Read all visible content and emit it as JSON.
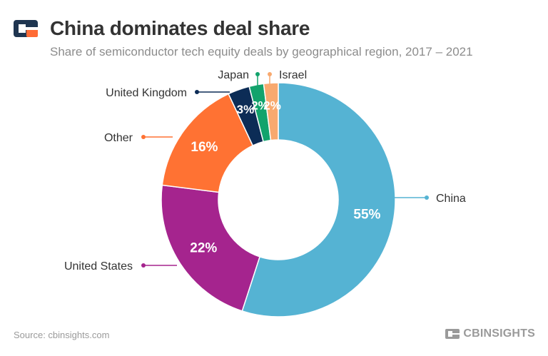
{
  "header": {
    "title": "China dominates deal share",
    "subtitle": "Share of semiconductor tech equity deals by geographical region, 2017 – 2021"
  },
  "footer": {
    "source": "Source: cbinsights.com",
    "brand": "CBINSIGHTS"
  },
  "colors": {
    "title": "#333333",
    "subtitle": "#8c8c8c",
    "logo_dark": "#1f3550",
    "logo_orange": "#ff6b35"
  },
  "chart_data": {
    "type": "pie",
    "style": "donut",
    "title": "",
    "series": [
      {
        "name": "China",
        "value": 55,
        "label": "55%",
        "color": "#55b3d3"
      },
      {
        "name": "United States",
        "value": 22,
        "label": "22%",
        "color": "#a5248e"
      },
      {
        "name": "Other",
        "value": 16,
        "label": "16%",
        "color": "#ff7233"
      },
      {
        "name": "United Kingdom",
        "value": 3,
        "label": "3%",
        "color": "#0c2c56"
      },
      {
        "name": "Japan",
        "value": 2,
        "label": "2%",
        "color": "#12a36c"
      },
      {
        "name": "Israel",
        "value": 2,
        "label": "2%",
        "color": "#f8a96f"
      }
    ]
  }
}
